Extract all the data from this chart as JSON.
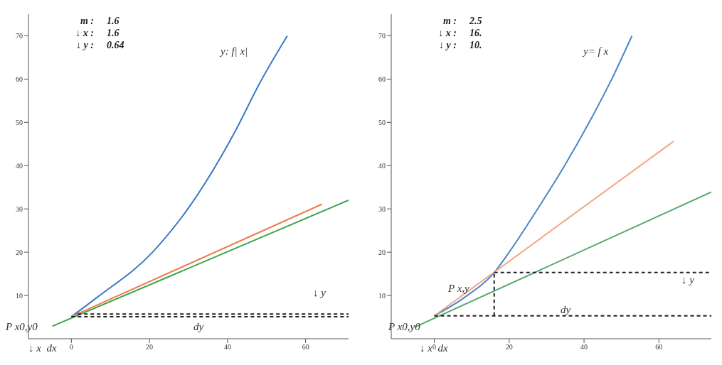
{
  "chart_data": [
    {
      "type": "line",
      "xlim": [
        -11,
        71
      ],
      "ylim": [
        0,
        75
      ],
      "xticks": [
        0,
        20,
        40,
        60
      ],
      "yticks": [
        10,
        20,
        30,
        40,
        50,
        60,
        70
      ],
      "series": [
        {
          "color": "#3a78c9",
          "x": [
            0,
            6.5,
            20.8,
            30.6,
            42,
            48.2,
            55.3
          ],
          "values": [
            5.1,
            9.5,
            20,
            31,
            48,
            59,
            70
          ]
        },
        {
          "color": "#f07a4a",
          "x": [
            0,
            64.2
          ],
          "values": [
            5.1,
            31.1
          ]
        },
        {
          "color": "#3aa34a",
          "x": [
            -4.9,
            71
          ],
          "values": [
            2.9,
            32
          ]
        },
        {
          "color": "#222222",
          "line_style": "dashed",
          "x": [
            0,
            71
          ],
          "values": [
            5.1,
            5.1
          ]
        },
        {
          "color": "#222222",
          "line_style": "dashed",
          "x": [
            1.6,
            71
          ],
          "values": [
            5.7,
            5.7
          ]
        }
      ],
      "annotations": [
        "m :",
        "1.6",
        "↓ x :",
        "1.6",
        "↓ y :",
        "0.64",
        "y: f| x|",
        "P x0,y0",
        "dy",
        "↓ y",
        "↓ x  dx"
      ]
    },
    {
      "type": "line",
      "xlim": [
        -11.5,
        74
      ],
      "ylim": [
        0,
        75
      ],
      "xticks": [
        0,
        20,
        40,
        60
      ],
      "yticks": [
        10,
        20,
        30,
        40,
        50,
        60,
        70
      ],
      "series": [
        {
          "color": "#4a86c8",
          "x": [
            0,
            8,
            16,
            20,
            27.6,
            34.8,
            42,
            47.4,
            52.8
          ],
          "values": [
            5.3,
            9.5,
            15.3,
            20,
            30,
            40,
            51,
            60,
            70
          ]
        },
        {
          "color": "#f4a582",
          "x": [
            0,
            63.9
          ],
          "values": [
            5.3,
            45.6
          ]
        },
        {
          "color": "#5aa66a",
          "x": [
            -5.2,
            74
          ],
          "values": [
            2.7,
            33.9
          ]
        },
        {
          "color": "#222222",
          "line_style": "dashed",
          "x": [
            0,
            74
          ],
          "values": [
            5.3,
            5.3
          ]
        },
        {
          "color": "#222222",
          "line_style": "dashed",
          "x": [
            16,
            74
          ],
          "values": [
            15.3,
            15.3
          ]
        },
        {
          "color": "#222222",
          "line_style": "dashed",
          "x": [
            16,
            16
          ],
          "values": [
            5.3,
            15.3
          ]
        }
      ],
      "annotations": [
        "m :",
        "2.5",
        "↓ x :",
        "16.",
        "↓ y :",
        "10.",
        "y= f x",
        "P x,y",
        "P x0,y0",
        "dy",
        "↓ y",
        "↓ x  dx"
      ]
    }
  ]
}
